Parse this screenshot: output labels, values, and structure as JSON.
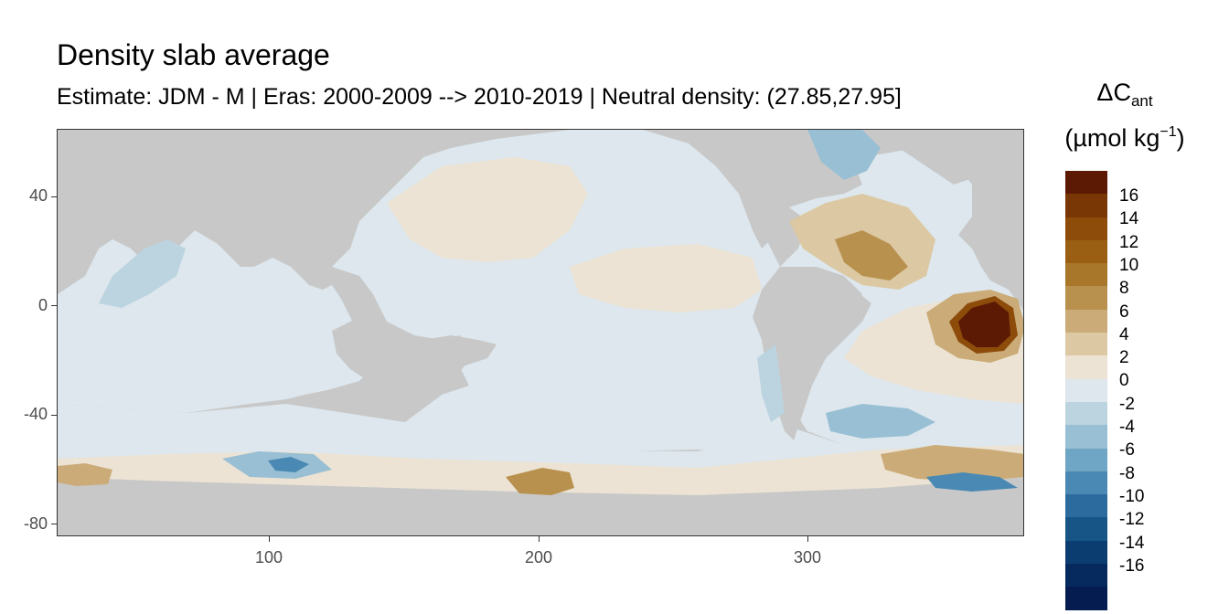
{
  "title": "Density slab average",
  "subtitle": "Estimate: JDM - M | Eras: 2000-2009 --> 2010-2019 | Neutral density: (27.85,27.95]",
  "colors": {
    "land": "#c8c8c8",
    "near_zero_negative": "#dde7ed",
    "near_zero_positive": "#ece3d4"
  },
  "axes": {
    "y_ticks": [
      "40",
      "0",
      "-40",
      "-80"
    ],
    "x_ticks": [
      "100",
      "200",
      "300"
    ]
  },
  "legend": {
    "title_main": "ΔC",
    "title_sub": "ant",
    "unit_prefix": "(µmol kg",
    "unit_sup": "−1",
    "unit_suffix": ")",
    "labels": [
      "16",
      "14",
      "12",
      "10",
      "8",
      "6",
      "4",
      "2",
      "0",
      "-2",
      "-4",
      "-6",
      "-8",
      "-10",
      "-12",
      "-14",
      "-16"
    ],
    "colors": [
      "#5c1a05",
      "#7a3706",
      "#8d4c0a",
      "#9a5f12",
      "#a9772a",
      "#b9914e",
      "#cbac79",
      "#dcc8a2",
      "#ece3d4",
      "#dde7ed",
      "#bcd3e0",
      "#98bfd4",
      "#6fa5c5",
      "#4a89b3",
      "#2c6b9e",
      "#175586",
      "#0b3d70",
      "#062a5d",
      "#041c50"
    ]
  }
}
